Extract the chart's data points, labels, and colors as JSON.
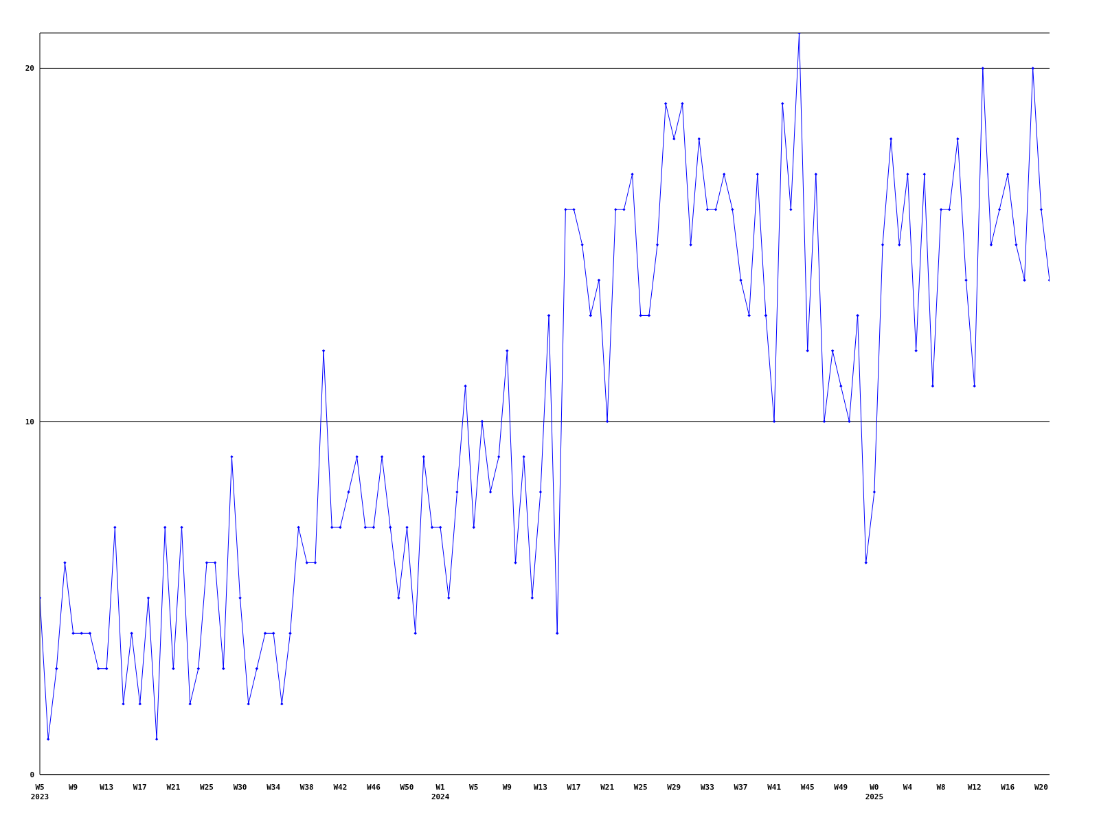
{
  "chart_data": {
    "type": "line",
    "categories": [
      "W5\n2023",
      null,
      null,
      null,
      "W9",
      null,
      null,
      null,
      "W13",
      null,
      null,
      null,
      "W17",
      null,
      null,
      null,
      "W21",
      null,
      null,
      null,
      "W25",
      null,
      null,
      null,
      "W30",
      null,
      null,
      null,
      "W34",
      null,
      null,
      null,
      "W38",
      null,
      null,
      null,
      "W42",
      null,
      null,
      null,
      "W46",
      null,
      null,
      null,
      "W50",
      null,
      null,
      null,
      "W1\n2024",
      null,
      null,
      null,
      "W5",
      null,
      null,
      null,
      "W9",
      null,
      null,
      null,
      "W13",
      null,
      null,
      null,
      "W17",
      null,
      null,
      null,
      "W21",
      null,
      null,
      null,
      "W25",
      null,
      null,
      null,
      "W29",
      null,
      null,
      null,
      "W33",
      null,
      null,
      null,
      "W37",
      null,
      null,
      null,
      "W41",
      null,
      null,
      null,
      "W45",
      null,
      null,
      null,
      "W49",
      null,
      null,
      null,
      "W0\n2025",
      null,
      null,
      null,
      "W4",
      null,
      null,
      null,
      "W8",
      null,
      null,
      null,
      "W12",
      null,
      null,
      null,
      "W16",
      null,
      null,
      null,
      "W20",
      null
    ],
    "series": [
      {
        "color": "#0000ff",
        "values": [
          5,
          1,
          3,
          6,
          4,
          4,
          4,
          3,
          3,
          7,
          2,
          4,
          2,
          5,
          1,
          7,
          3,
          7,
          2,
          3,
          6,
          6,
          3,
          9,
          5,
          2,
          3,
          4,
          4,
          2,
          4,
          7,
          6,
          6,
          12,
          7,
          7,
          8,
          9,
          7,
          7,
          9,
          7,
          5,
          7,
          4,
          9,
          7,
          7,
          5,
          8,
          11,
          7,
          10,
          8,
          9,
          12,
          6,
          9,
          5,
          8,
          13,
          4,
          16,
          16,
          15,
          13,
          14,
          10,
          16,
          16,
          17,
          13,
          13,
          15,
          19,
          18,
          19,
          15,
          18,
          16,
          16,
          17,
          16,
          14,
          13,
          17,
          13,
          10,
          19,
          16,
          21,
          12,
          17,
          10,
          12,
          11,
          10,
          13,
          6,
          8,
          15,
          18,
          15,
          17,
          12,
          17,
          11,
          16,
          16,
          18,
          14,
          11,
          20,
          15,
          16,
          17,
          15,
          14,
          20,
          16,
          14
        ]
      }
    ],
    "ylim": [
      0,
      21
    ],
    "yticks": [
      0,
      10,
      20
    ],
    "grid": "y",
    "marker": "diamond",
    "line_style": "solid"
  }
}
